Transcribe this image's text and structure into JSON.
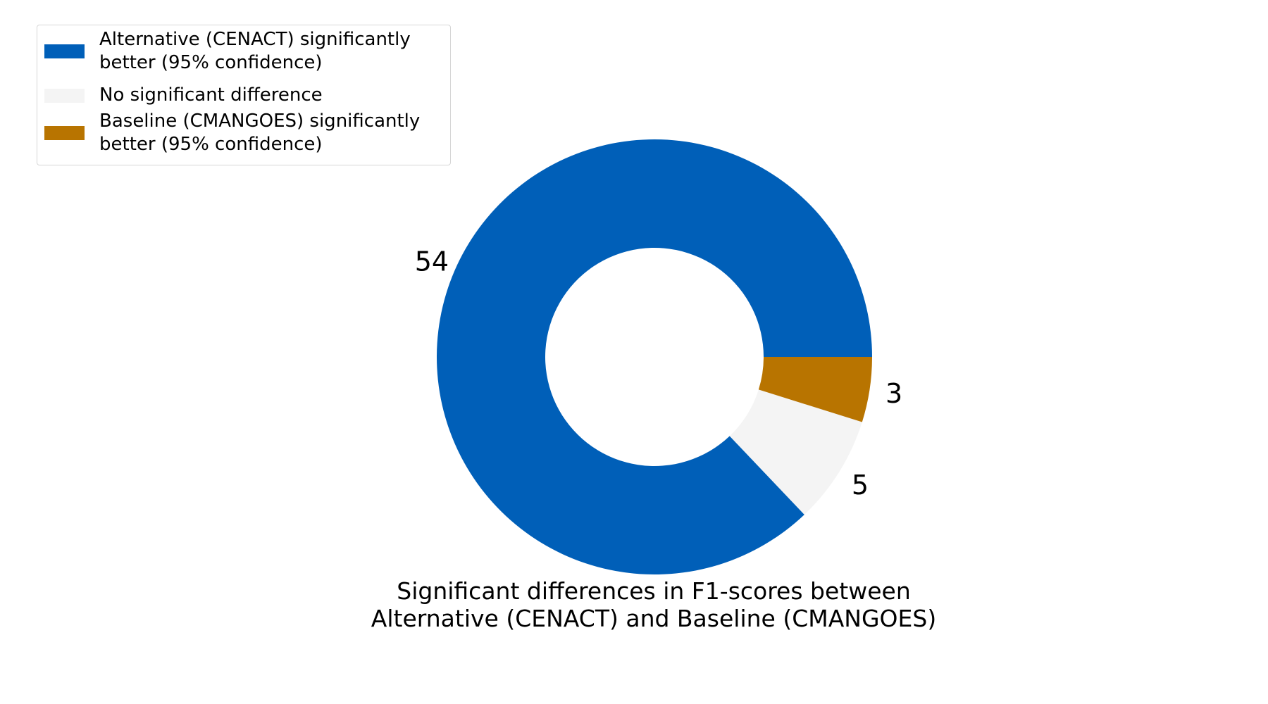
{
  "chart_data": {
    "type": "pie",
    "variant": "donut",
    "title": "Significant differences in F1-scores between\nAlternative (CENACT) and Baseline (CMANGOES)",
    "title_lines": [
      "Significant differences in F1-scores between",
      "Alternative (CENACT) and Baseline (CMANGOES)"
    ],
    "series": [
      {
        "name": "Alternative (CENACT) significantly better (95% confidence)",
        "legend_label": "Alternative (CENACT) significantly\nbetter (95% confidence)",
        "value": 54,
        "label": "54",
        "color": "#005fb8"
      },
      {
        "name": "No significant difference",
        "legend_label": "No significant difference",
        "value": 5,
        "label": "5",
        "color": "#f4f4f4"
      },
      {
        "name": "Baseline (CMANGOES) significantly better (95% confidence)",
        "legend_label": "Baseline (CMANGOES) significantly\nbetter (95% confidence)",
        "value": 3,
        "label": "3",
        "color": "#b87400"
      }
    ],
    "slice_order": "counterclockwise",
    "start_angle_deg": 0,
    "legend_position": "top-left",
    "grid": false
  }
}
